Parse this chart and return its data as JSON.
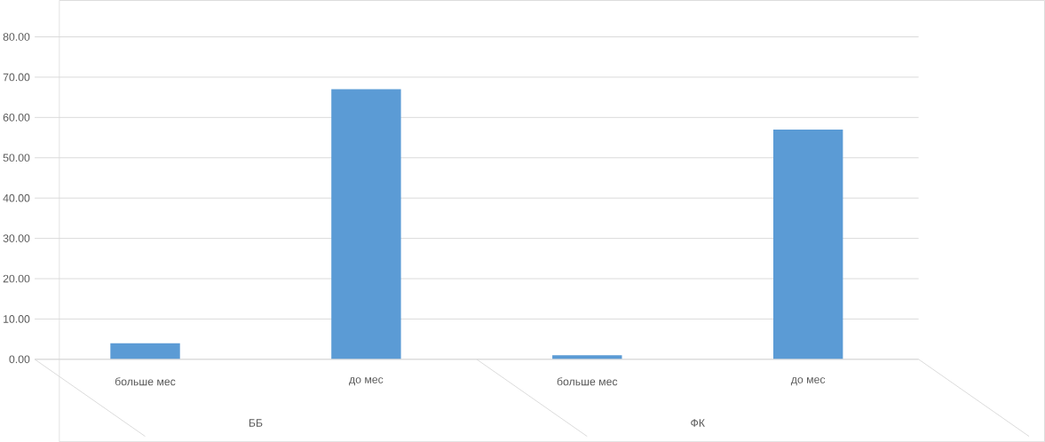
{
  "chart_data": {
    "type": "bar",
    "categories": [
      "больше мес",
      "до мес",
      "больше мес",
      "до мес"
    ],
    "values": [
      4,
      67,
      1,
      57
    ],
    "color": "#5b9bd5",
    "ylim": [
      0,
      80
    ],
    "yticks": [
      {
        "value": 0,
        "label": "0.00"
      },
      {
        "value": 10,
        "label": "10.00"
      },
      {
        "value": 20,
        "label": "20.00"
      },
      {
        "value": 30,
        "label": "30.00"
      },
      {
        "value": 40,
        "label": "40.00"
      },
      {
        "value": 50,
        "label": "50.00"
      },
      {
        "value": 60,
        "label": "60.00"
      },
      {
        "value": 70,
        "label": "70.00"
      },
      {
        "value": 80,
        "label": "80.00"
      }
    ],
    "grid": "y",
    "annotations": [
      "ББ",
      "ФК"
    ]
  }
}
